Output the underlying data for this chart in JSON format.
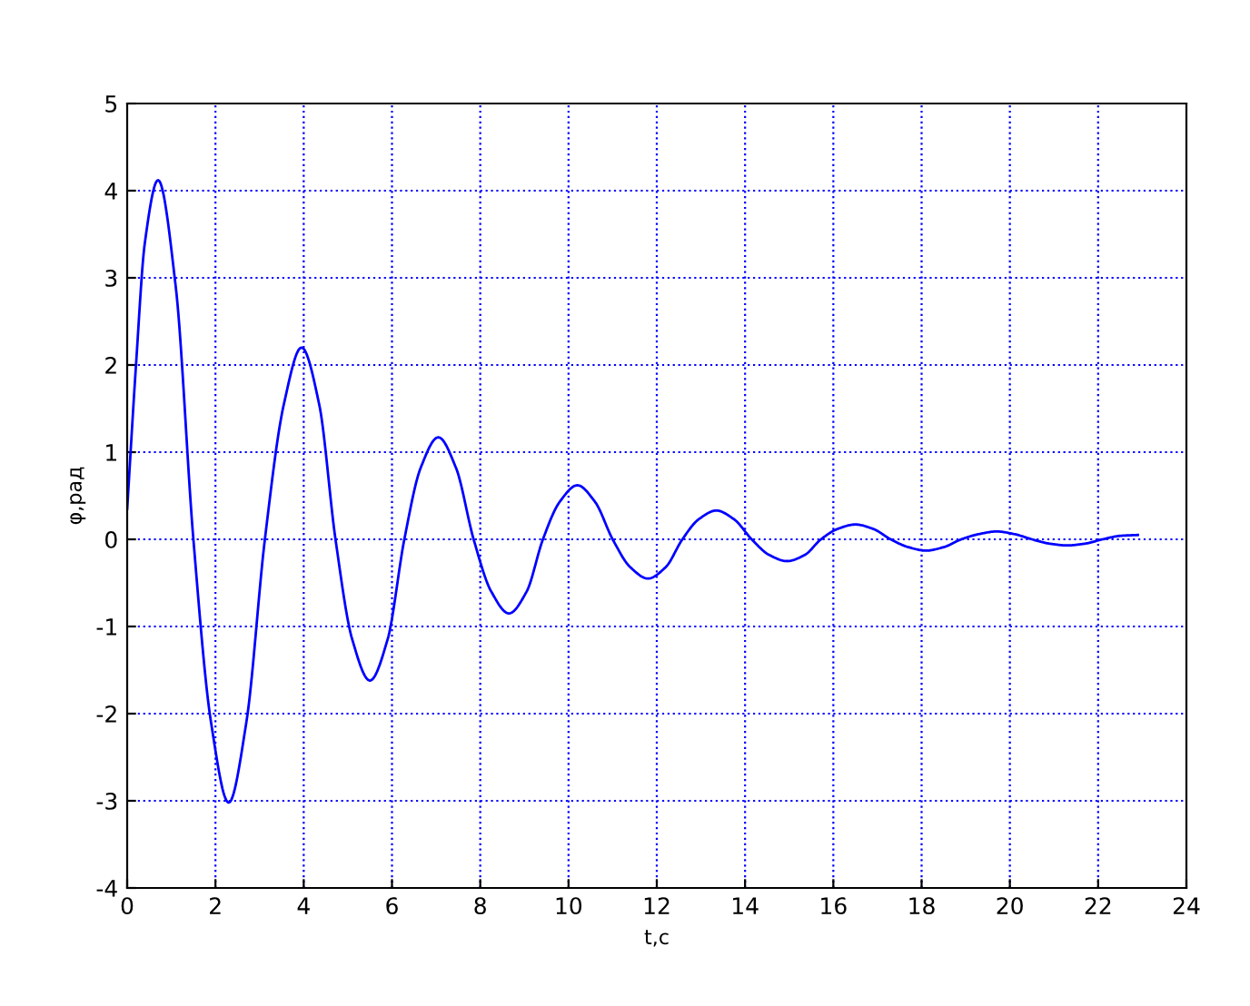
{
  "chart_data": {
    "type": "line",
    "xlabel": "t,c",
    "ylabel": "φ,рад",
    "xlim": [
      0,
      24
    ],
    "ylim": [
      -4,
      5
    ],
    "xticks": [
      0,
      2,
      4,
      6,
      8,
      10,
      12,
      14,
      16,
      18,
      20,
      22,
      24
    ],
    "yticks": [
      -4,
      -3,
      -2,
      -1,
      0,
      1,
      2,
      3,
      4,
      5
    ],
    "grid": true,
    "line_style": "solid",
    "marker": "none",
    "series": [
      {
        "color": "#0000ff",
        "x": [
          0,
          0.2,
          0.4,
          0.7,
          1.1,
          1.5,
          1.9,
          2.3,
          2.7,
          3.12,
          3.55,
          3.95,
          4.35,
          4.72,
          5.1,
          5.5,
          5.9,
          6.28,
          6.65,
          7.05,
          7.45,
          7.85,
          8.25,
          8.65,
          9.05,
          9.42,
          9.8,
          10.2,
          10.6,
          11.0,
          11.4,
          11.8,
          12.2,
          12.58,
          12.95,
          13.35,
          13.75,
          14.15,
          14.55,
          14.95,
          15.35,
          15.72,
          16.1,
          16.5,
          16.9,
          17.3,
          17.7,
          18.1,
          18.5,
          18.9,
          19.3,
          19.7,
          20.1,
          20.5,
          20.9,
          21.3,
          21.7,
          22.1,
          22.5,
          22.9
        ],
        "values": [
          0.35,
          2.0,
          3.4,
          4.12,
          2.9,
          0,
          -2.1,
          -3.02,
          -2.1,
          0,
          1.55,
          2.2,
          1.55,
          0,
          -1.15,
          -1.62,
          -1.15,
          0,
          0.82,
          1.17,
          0.82,
          0,
          -0.6,
          -0.85,
          -0.6,
          0,
          0.43,
          0.62,
          0.43,
          0,
          -0.32,
          -0.45,
          -0.32,
          0,
          0.23,
          0.33,
          0.23,
          0,
          -0.18,
          -0.25,
          -0.18,
          0,
          0.12,
          0.17,
          0.12,
          0,
          -0.09,
          -0.13,
          -0.09,
          0,
          0.06,
          0.09,
          0.06,
          0,
          -0.05,
          -0.07,
          -0.05,
          0,
          0.04,
          0.05
        ]
      }
    ]
  }
}
